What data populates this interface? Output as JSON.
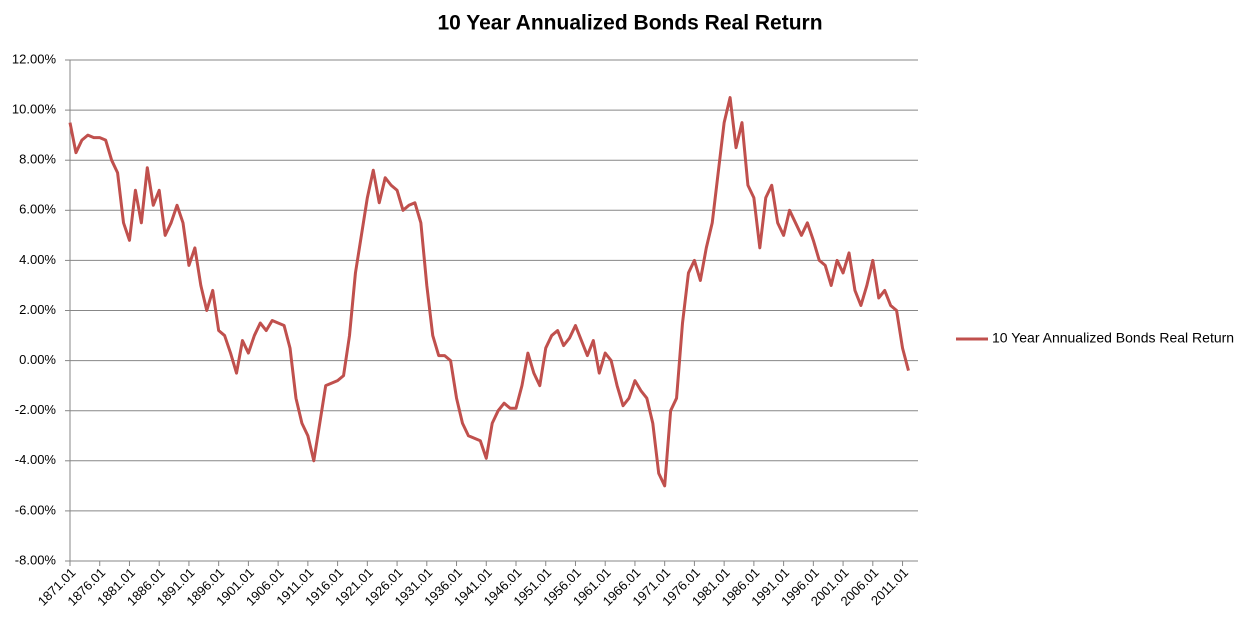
{
  "chart_data": {
    "type": "line",
    "title": "10 Year Annualized Bonds Real Return",
    "x": [
      1871,
      1872,
      1873,
      1874,
      1875,
      1876,
      1877,
      1878,
      1879,
      1880,
      1881,
      1882,
      1883,
      1884,
      1885,
      1886,
      1887,
      1888,
      1889,
      1890,
      1891,
      1892,
      1893,
      1894,
      1895,
      1896,
      1897,
      1898,
      1899,
      1900,
      1901,
      1902,
      1903,
      1904,
      1905,
      1906,
      1907,
      1908,
      1909,
      1910,
      1911,
      1912,
      1913,
      1914,
      1915,
      1916,
      1917,
      1918,
      1919,
      1920,
      1921,
      1922,
      1923,
      1924,
      1925,
      1926,
      1927,
      1928,
      1929,
      1930,
      1931,
      1932,
      1933,
      1934,
      1935,
      1936,
      1937,
      1938,
      1939,
      1940,
      1941,
      1942,
      1943,
      1944,
      1945,
      1946,
      1947,
      1948,
      1949,
      1950,
      1951,
      1952,
      1953,
      1954,
      1955,
      1956,
      1957,
      1958,
      1959,
      1960,
      1961,
      1962,
      1963,
      1964,
      1965,
      1966,
      1967,
      1968,
      1969,
      1970,
      1971,
      1972,
      1973,
      1974,
      1975,
      1976,
      1977,
      1978,
      1979,
      1980,
      1981,
      1982,
      1983,
      1984,
      1985,
      1986,
      1987,
      1988,
      1989,
      1990,
      1991,
      1992,
      1993,
      1994,
      1995,
      1996,
      1997,
      1998,
      1999,
      2000,
      2001,
      2002,
      2003,
      2004,
      2005,
      2006,
      2007,
      2008,
      2009,
      2010,
      2011,
      2012
    ],
    "series": [
      {
        "name": "10 Year Annualized Bonds Real Return",
        "color": "#c0504d",
        "values": [
          9.5,
          8.3,
          8.8,
          9.0,
          8.9,
          8.9,
          8.8,
          8.0,
          7.5,
          5.5,
          4.8,
          6.8,
          5.5,
          7.7,
          6.2,
          6.8,
          5.0,
          5.5,
          6.2,
          5.5,
          3.8,
          4.5,
          3.0,
          2.0,
          2.8,
          1.2,
          1.0,
          0.3,
          -0.5,
          0.8,
          0.3,
          1.0,
          1.5,
          1.2,
          1.6,
          1.5,
          1.4,
          0.5,
          -1.5,
          -2.5,
          -3.0,
          -4.0,
          -2.5,
          -1.0,
          -0.9,
          -0.8,
          -0.6,
          1.0,
          3.5,
          5.0,
          6.5,
          7.6,
          6.3,
          7.3,
          7.0,
          6.8,
          6.0,
          6.2,
          6.3,
          5.5,
          3.0,
          1.0,
          0.2,
          0.2,
          0.0,
          -1.5,
          -2.5,
          -3.0,
          -3.1,
          -3.2,
          -3.9,
          -2.5,
          -2.0,
          -1.7,
          -1.9,
          -1.9,
          -1.0,
          0.3,
          -0.5,
          -1.0,
          0.5,
          1.0,
          1.2,
          0.6,
          0.9,
          1.4,
          0.8,
          0.2,
          0.8,
          -0.5,
          0.3,
          0.0,
          -1.0,
          -1.8,
          -1.5,
          -0.8,
          -1.2,
          -1.5,
          -2.5,
          -4.5,
          -5.0,
          -2.0,
          -1.5,
          1.5,
          3.5,
          4.0,
          3.2,
          4.5,
          5.5,
          7.5,
          9.5,
          10.5,
          8.5,
          9.5,
          7.0,
          6.5,
          4.5,
          6.5,
          7.0,
          5.5,
          5.0,
          6.0,
          5.5,
          5.0,
          5.5,
          4.8,
          4.0,
          3.8,
          3.0,
          4.0,
          3.5,
          4.3,
          2.8,
          2.2,
          3.0,
          4.0,
          2.5,
          2.8,
          2.2,
          2.0,
          0.5,
          -0.4
        ]
      }
    ],
    "xlim": [
      1871,
      2013.6
    ],
    "xticks": [
      {
        "value": 1871,
        "label": "1871.01"
      },
      {
        "value": 1876,
        "label": "1876.01"
      },
      {
        "value": 1881,
        "label": "1881.01"
      },
      {
        "value": 1886,
        "label": "1886.01"
      },
      {
        "value": 1891,
        "label": "1891.01"
      },
      {
        "value": 1896,
        "label": "1896.01"
      },
      {
        "value": 1901,
        "label": "1901.01"
      },
      {
        "value": 1906,
        "label": "1906.01"
      },
      {
        "value": 1911,
        "label": "1911.01"
      },
      {
        "value": 1916,
        "label": "1916.01"
      },
      {
        "value": 1921,
        "label": "1921.01"
      },
      {
        "value": 1926,
        "label": "1926.01"
      },
      {
        "value": 1931,
        "label": "1931.01"
      },
      {
        "value": 1936,
        "label": "1936.01"
      },
      {
        "value": 1941,
        "label": "1941.01"
      },
      {
        "value": 1946,
        "label": "1946.01"
      },
      {
        "value": 1951,
        "label": "1951.01"
      },
      {
        "value": 1956,
        "label": "1956.01"
      },
      {
        "value": 1961,
        "label": "1961.01"
      },
      {
        "value": 1966,
        "label": "1966.01"
      },
      {
        "value": 1971,
        "label": "1971.01"
      },
      {
        "value": 1976,
        "label": "1976.01"
      },
      {
        "value": 1981,
        "label": "1981.01"
      },
      {
        "value": 1986,
        "label": "1986.01"
      },
      {
        "value": 1991,
        "label": "1991.01"
      },
      {
        "value": 1996,
        "label": "1996.01"
      },
      {
        "value": 2001,
        "label": "2001.01"
      },
      {
        "value": 2006,
        "label": "2006.01"
      },
      {
        "value": 2011,
        "label": "2011.01"
      }
    ],
    "ylim": [
      -8,
      12
    ],
    "yticks": [
      {
        "value": -8,
        "label": "-8.00%"
      },
      {
        "value": -6,
        "label": "-6.00%"
      },
      {
        "value": -4,
        "label": "-4.00%"
      },
      {
        "value": -2,
        "label": "-2.00%"
      },
      {
        "value": 0,
        "label": "0.00%"
      },
      {
        "value": 2,
        "label": "2.00%"
      },
      {
        "value": 4,
        "label": "4.00%"
      },
      {
        "value": 6,
        "label": "6.00%"
      },
      {
        "value": 8,
        "label": "8.00%"
      },
      {
        "value": 10,
        "label": "10.00%"
      },
      {
        "value": 12,
        "label": "12.00%"
      }
    ],
    "grid": true,
    "legend": "right"
  }
}
